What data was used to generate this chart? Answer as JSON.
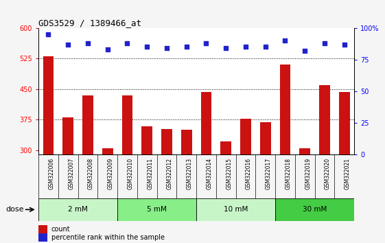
{
  "title": "GDS3529 / 1389466_at",
  "samples": [
    "GSM322006",
    "GSM322007",
    "GSM322008",
    "GSM322009",
    "GSM322010",
    "GSM322011",
    "GSM322012",
    "GSM322013",
    "GSM322014",
    "GSM322015",
    "GSM322016",
    "GSM322017",
    "GSM322018",
    "GSM322019",
    "GSM322020",
    "GSM322021"
  ],
  "counts": [
    530,
    380,
    435,
    305,
    435,
    358,
    352,
    350,
    443,
    322,
    378,
    368,
    510,
    305,
    460,
    443
  ],
  "percentiles": [
    95,
    87,
    88,
    83,
    88,
    85,
    84,
    85,
    88,
    84,
    85,
    85,
    90,
    82,
    88,
    87
  ],
  "dose_groups": [
    {
      "label": "2 mM",
      "start": 0,
      "end": 4,
      "color": "#c8f5c8"
    },
    {
      "label": "5 mM",
      "start": 4,
      "end": 8,
      "color": "#88ee88"
    },
    {
      "label": "10 mM",
      "start": 8,
      "end": 12,
      "color": "#c8f5c8"
    },
    {
      "label": "30 mM",
      "start": 12,
      "end": 16,
      "color": "#44cc44"
    }
  ],
  "bar_color": "#cc1111",
  "dot_color": "#2222cc",
  "ylim_left": [
    290,
    600
  ],
  "ylim_right": [
    0,
    100
  ],
  "yticks_left": [
    300,
    375,
    450,
    525,
    600
  ],
  "yticks_right": [
    0,
    25,
    50,
    75,
    100
  ],
  "grid_lines": [
    375,
    450,
    525
  ],
  "plot_bg": "#ffffff",
  "xtick_bg": "#cccccc",
  "legend_count_label": "count",
  "legend_pct_label": "percentile rank within the sample"
}
